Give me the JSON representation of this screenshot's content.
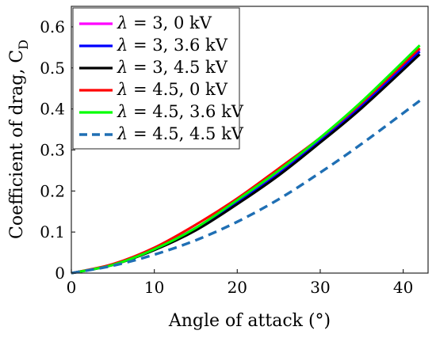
{
  "chart_data": {
    "type": "line",
    "xlabel": "Angle of attack (°)",
    "ylabel_main": "Coefficient of drag, C",
    "ylabel_sub": "D",
    "xlim": [
      0,
      43
    ],
    "ylim": [
      0,
      0.65
    ],
    "xticks": [
      0,
      10,
      20,
      30,
      40
    ],
    "xtick_labels": [
      "0",
      "10",
      "20",
      "30",
      "40"
    ],
    "yticks": [
      0,
      0.1,
      0.2,
      0.3,
      0.4,
      0.5,
      0.6
    ],
    "ytick_labels": [
      "0",
      "0.1",
      "0.2",
      "0.3",
      "0.4",
      "0.5",
      "0.6"
    ],
    "grid": false,
    "legend_position": "top-left",
    "series": [
      {
        "name": "λ = 3, 0 kV",
        "legend_symbol": "λ",
        "legend_rest": " = 3, 0 kV",
        "color": "#ff00ff",
        "style": "solid",
        "x": [
          0,
          5,
          10,
          15,
          20,
          25,
          30,
          35,
          42
        ],
        "y": [
          0,
          0.02,
          0.06,
          0.11,
          0.175,
          0.245,
          0.325,
          0.41,
          0.545
        ]
      },
      {
        "name": "λ = 3, 3.6 kV",
        "legend_symbol": "λ",
        "legend_rest": " = 3, 3.6 kV",
        "color": "#0000ff",
        "style": "solid",
        "x": [
          0,
          5,
          10,
          15,
          20,
          25,
          30,
          35,
          42
        ],
        "y": [
          0,
          0.02,
          0.058,
          0.108,
          0.172,
          0.242,
          0.322,
          0.407,
          0.54
        ]
      },
      {
        "name": "λ = 3, 4.5 kV",
        "legend_symbol": "λ",
        "legend_rest": " = 3, 4.5 kV",
        "color": "#000000",
        "style": "solid",
        "x": [
          0,
          5,
          10,
          15,
          20,
          25,
          30,
          35,
          42
        ],
        "y": [
          0,
          0.02,
          0.056,
          0.104,
          0.168,
          0.238,
          0.318,
          0.402,
          0.533
        ]
      },
      {
        "name": "λ = 4.5, 0 kV",
        "legend_symbol": "λ",
        "legend_rest": " = 4.5, 0 kV",
        "color": "#ff0000",
        "style": "solid",
        "x": [
          0,
          5,
          10,
          15,
          20,
          25,
          30,
          35,
          42
        ],
        "y": [
          0,
          0.022,
          0.062,
          0.118,
          0.182,
          0.255,
          0.33,
          0.415,
          0.548
        ]
      },
      {
        "name": "λ = 4.5, 3.6 kV",
        "legend_symbol": "λ",
        "legend_rest": " = 4.5, 3.6 kV",
        "color": "#00ff00",
        "style": "solid",
        "x": [
          0,
          5,
          10,
          15,
          20,
          25,
          30,
          35,
          42
        ],
        "y": [
          0,
          0.02,
          0.058,
          0.11,
          0.178,
          0.25,
          0.33,
          0.418,
          0.555
        ]
      },
      {
        "name": "λ = 4.5, 4.5 kV",
        "legend_symbol": "λ",
        "legend_rest": " = 4.5, 4.5 kV",
        "color": "#1f6fb4",
        "style": "dashed",
        "x": [
          0,
          5,
          10,
          15,
          20,
          25,
          30,
          35,
          42
        ],
        "y": [
          0,
          0.018,
          0.045,
          0.08,
          0.125,
          0.18,
          0.245,
          0.315,
          0.42
        ]
      }
    ]
  }
}
